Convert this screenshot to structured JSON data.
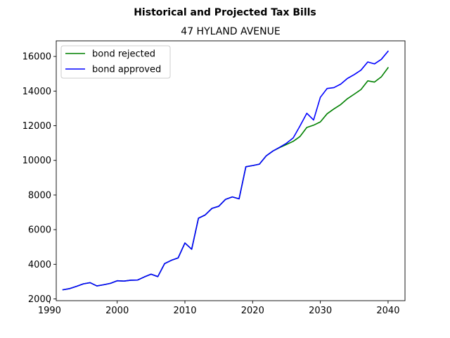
{
  "figure": {
    "suptitle": "Historical and Projected Tax Bills",
    "title": "47 HYLAND AVENUE"
  },
  "chart_data": {
    "type": "line",
    "title": "47 HYLAND AVENUE",
    "xlabel": "",
    "ylabel": "",
    "xlim": [
      1991,
      2042.5
    ],
    "ylim": [
      1900,
      16900
    ],
    "xticks": [
      1990,
      2000,
      2010,
      2020,
      2030,
      2040
    ],
    "yticks": [
      2000,
      4000,
      6000,
      8000,
      10000,
      12000,
      14000,
      16000
    ],
    "grid": false,
    "legend_position": "upper left",
    "series": [
      {
        "name": "bond rejected",
        "color": "#008000",
        "x": [
          1992,
          1993,
          1994,
          1995,
          1996,
          1997,
          1998,
          1999,
          2000,
          2001,
          2002,
          2003,
          2004,
          2005,
          2006,
          2007,
          2008,
          2009,
          2010,
          2011,
          2012,
          2013,
          2014,
          2015,
          2016,
          2017,
          2018,
          2019,
          2020,
          2021,
          2022,
          2023,
          2024,
          2025,
          2026,
          2027,
          2028,
          2029,
          2030,
          2031,
          2032,
          2033,
          2034,
          2035,
          2036,
          2037,
          2038,
          2039,
          2040
        ],
        "values": [
          2530,
          2600,
          2730,
          2870,
          2940,
          2750,
          2820,
          2900,
          3050,
          3030,
          3080,
          3090,
          3270,
          3430,
          3290,
          4040,
          4230,
          4370,
          5230,
          4870,
          6660,
          6850,
          7230,
          7350,
          7750,
          7890,
          7780,
          9630,
          9700,
          9780,
          10260,
          10540,
          10740,
          10920,
          11100,
          11380,
          11900,
          12030,
          12220,
          12690,
          12970,
          13220,
          13560,
          13820,
          14090,
          14590,
          14520,
          14820,
          15350
        ]
      },
      {
        "name": "bond approved",
        "color": "#0000ff",
        "x": [
          1992,
          1993,
          1994,
          1995,
          1996,
          1997,
          1998,
          1999,
          2000,
          2001,
          2002,
          2003,
          2004,
          2005,
          2006,
          2007,
          2008,
          2009,
          2010,
          2011,
          2012,
          2013,
          2014,
          2015,
          2016,
          2017,
          2018,
          2019,
          2020,
          2021,
          2022,
          2023,
          2024,
          2025,
          2026,
          2027,
          2028,
          2029,
          2030,
          2031,
          2032,
          2033,
          2034,
          2035,
          2036,
          2037,
          2038,
          2039,
          2040
        ],
        "values": [
          2530,
          2600,
          2730,
          2870,
          2940,
          2750,
          2820,
          2900,
          3050,
          3030,
          3080,
          3090,
          3270,
          3430,
          3290,
          4040,
          4230,
          4370,
          5230,
          4870,
          6660,
          6850,
          7230,
          7350,
          7750,
          7890,
          7780,
          9630,
          9700,
          9780,
          10260,
          10540,
          10760,
          10990,
          11300,
          11990,
          12720,
          12330,
          13640,
          14150,
          14200,
          14400,
          14730,
          14950,
          15210,
          15680,
          15570,
          15830,
          16300
        ]
      }
    ]
  }
}
